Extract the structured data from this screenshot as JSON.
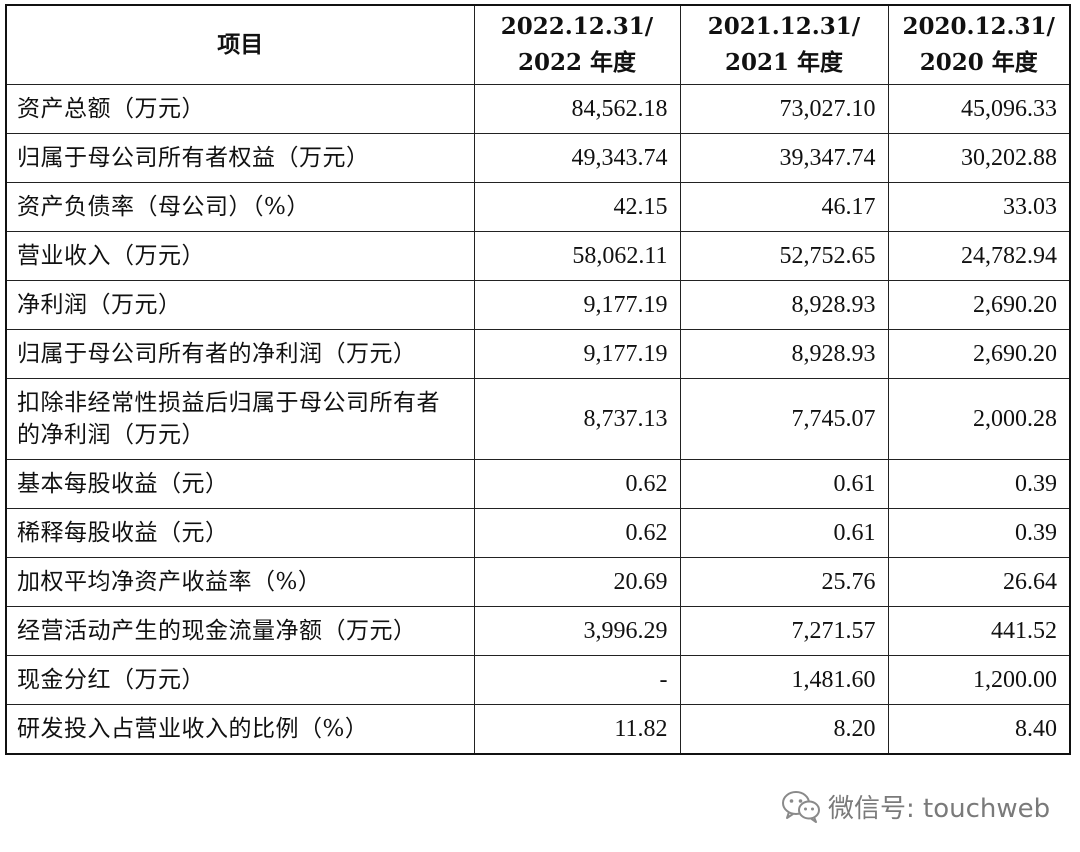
{
  "table": {
    "headers": [
      "项目",
      "2022.12.31/\n2022 年度",
      "2021.12.31/\n2021 年度",
      "2020.12.31/\n2020 年度"
    ],
    "rows": [
      {
        "label": "资产总额（万元）",
        "values": [
          "84,562.18",
          "73,027.10",
          "45,096.33"
        ]
      },
      {
        "label": "归属于母公司所有者权益（万元）",
        "values": [
          "49,343.74",
          "39,347.74",
          "30,202.88"
        ]
      },
      {
        "label": "资产负债率（母公司）（%）",
        "values": [
          "42.15",
          "46.17",
          "33.03"
        ]
      },
      {
        "label": "营业收入（万元）",
        "values": [
          "58,062.11",
          "52,752.65",
          "24,782.94"
        ]
      },
      {
        "label": "净利润（万元）",
        "values": [
          "9,177.19",
          "8,928.93",
          "2,690.20"
        ]
      },
      {
        "label": "归属于母公司所有者的净利润（万元）",
        "values": [
          "9,177.19",
          "8,928.93",
          "2,690.20"
        ]
      },
      {
        "label": "扣除非经常性损益后归属于母公司所有者的净利润（万元）",
        "values": [
          "8,737.13",
          "7,745.07",
          "2,000.28"
        ]
      },
      {
        "label": "基本每股收益（元）",
        "values": [
          "0.62",
          "0.61",
          "0.39"
        ]
      },
      {
        "label": "稀释每股收益（元）",
        "values": [
          "0.62",
          "0.61",
          "0.39"
        ]
      },
      {
        "label": "加权平均净资产收益率（%）",
        "values": [
          "20.69",
          "25.76",
          "26.64"
        ]
      },
      {
        "label": "经营活动产生的现金流量净额（万元）",
        "values": [
          "3,996.29",
          "7,271.57",
          "441.52"
        ]
      },
      {
        "label": "现金分红（万元）",
        "values": [
          "-",
          "1,481.60",
          "1,200.00"
        ]
      },
      {
        "label": "研发投入占营业收入的比例（%）",
        "values": [
          "11.82",
          "8.20",
          "8.40"
        ]
      }
    ]
  },
  "watermark": {
    "text": "微信号: touchweb",
    "icon": "wechat-icon"
  }
}
